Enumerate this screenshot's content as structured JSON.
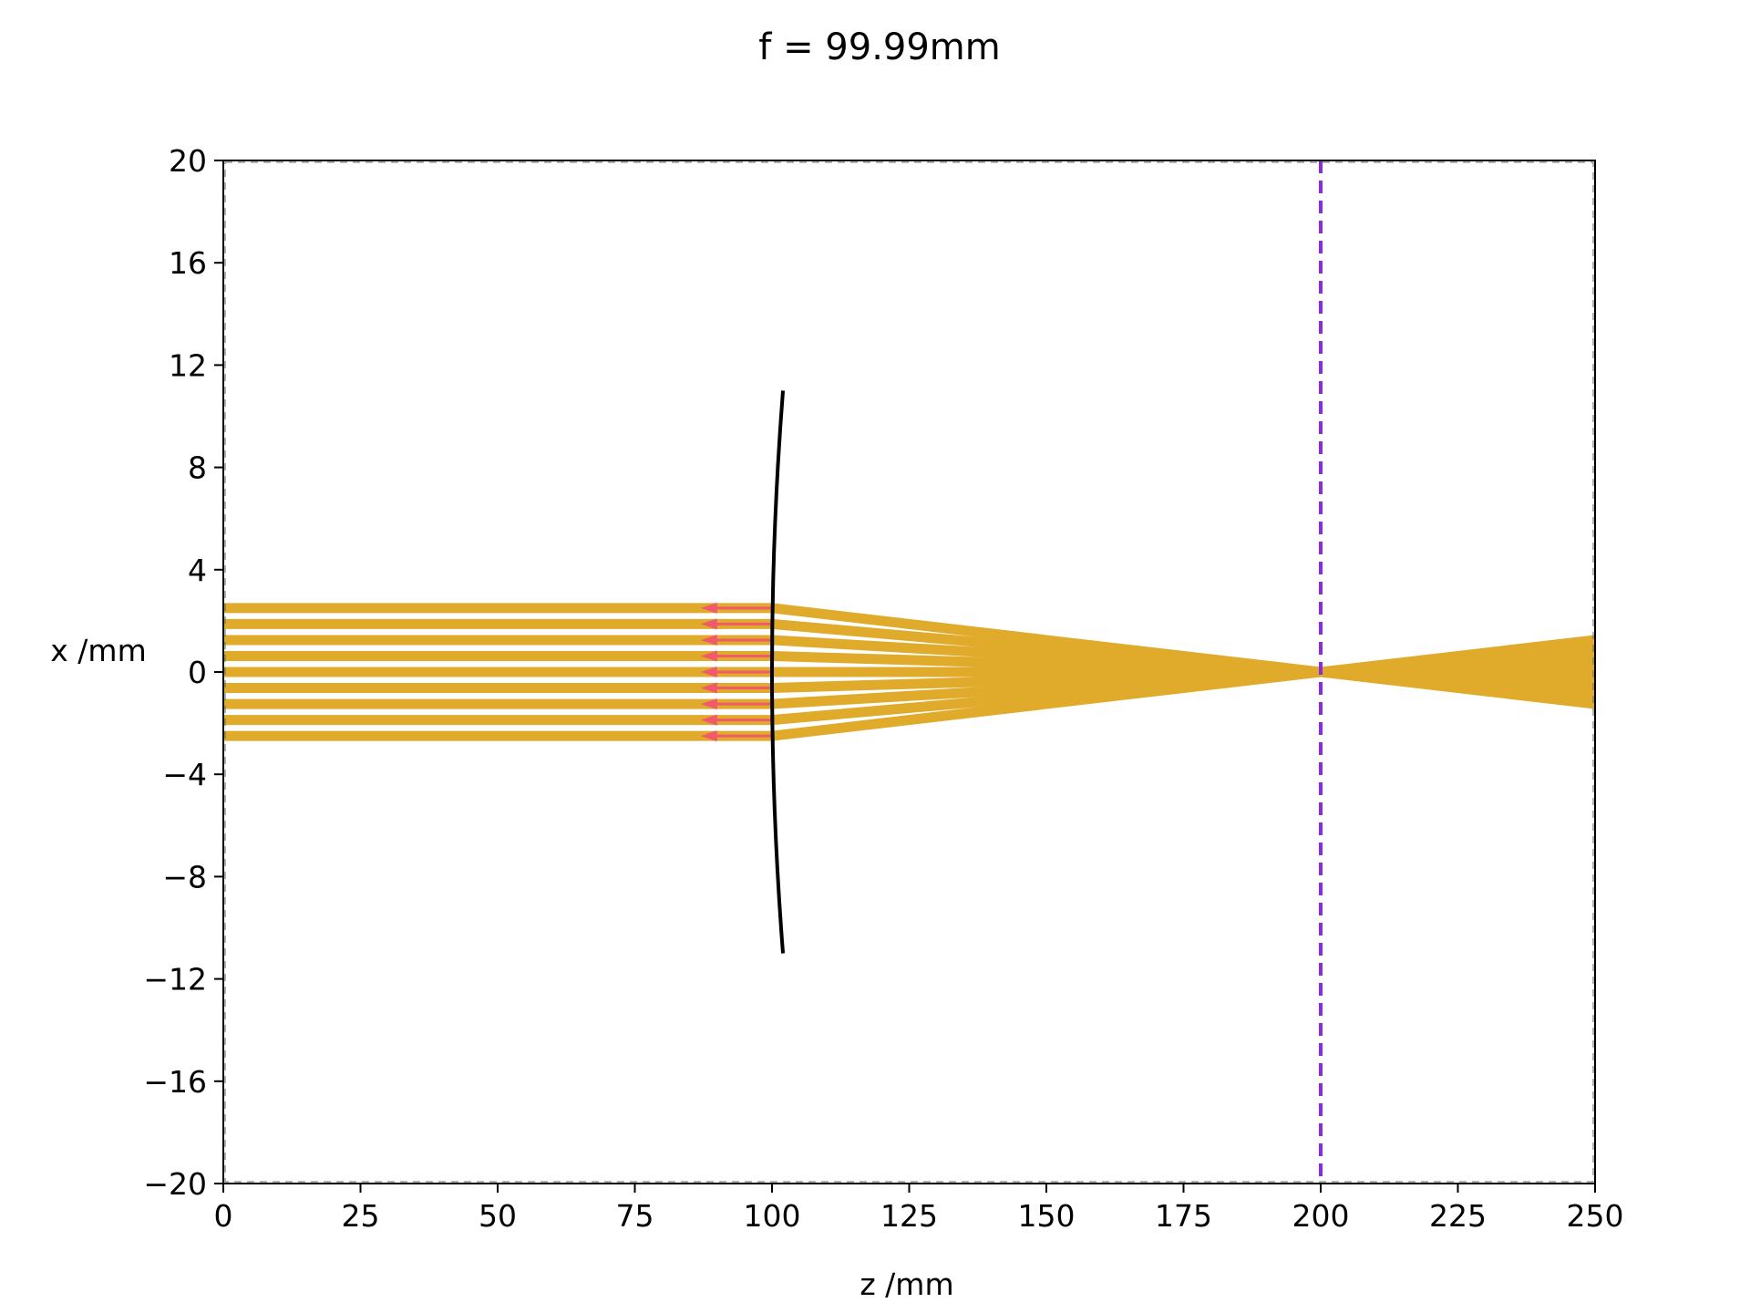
{
  "chart_data": {
    "type": "line",
    "title": "f = 99.99mm",
    "xlabel": "z /mm",
    "ylabel": "x /mm",
    "xlim": [
      0,
      250
    ],
    "ylim": [
      -20,
      20
    ],
    "x_ticks": [
      0,
      25,
      50,
      75,
      100,
      125,
      150,
      175,
      200,
      225,
      250
    ],
    "y_ticks": [
      -20,
      -16,
      -12,
      -8,
      -4,
      0,
      4,
      8,
      12,
      16,
      20
    ],
    "x_tick_labels": [
      "0",
      "25",
      "50",
      "75",
      "100",
      "125",
      "150",
      "175",
      "200",
      "225",
      "250"
    ],
    "y_tick_labels": [
      "−20",
      "−16",
      "−12",
      "−8",
      "−4",
      "0",
      "4",
      "8",
      "12",
      "16",
      "20"
    ],
    "grid": false,
    "colors": {
      "rays": "#e0aa2a",
      "reflected_rays": "#f05a6a",
      "lens": "#000000",
      "focal_plane": "#8a2be2",
      "frame": "#000000"
    },
    "rays": {
      "start_z": 0,
      "lens_z": 100,
      "end_z": 250,
      "focus_z": 200,
      "heights": [
        2.5,
        1.875,
        1.25,
        0.625,
        0.0,
        -0.625,
        -1.25,
        -1.875,
        -2.5
      ]
    },
    "reflected_rays": {
      "from_z": 100,
      "to_z": 87,
      "heights": [
        2.5,
        1.875,
        1.25,
        0.625,
        0.0,
        -0.625,
        -1.25,
        -1.875,
        -2.5
      ]
    },
    "lens": {
      "z_center": 100,
      "z_edge": 102,
      "half_height": 11
    },
    "focal_plane": {
      "z": 200,
      "style": "dashed"
    }
  }
}
